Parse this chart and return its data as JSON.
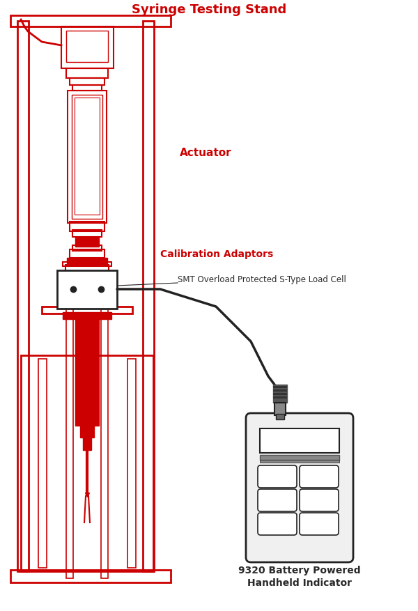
{
  "title": "Syringe Testing Stand",
  "title_color": "#cc0000",
  "label_actuator": "Actuator",
  "label_calib": "Calibration Adaptors",
  "label_loadcell": "SMT Overload Protected S-Type Load Cell",
  "label_indicator": "9320 Battery Powered\nHandheld Indicator",
  "label_color_red": "#cc0000",
  "label_color_black": "#2a2a2a",
  "bg_color": "#ffffff",
  "red": "#cc0000",
  "black": "#222222",
  "gray": "#888888",
  "light_gray": "#dddddd"
}
